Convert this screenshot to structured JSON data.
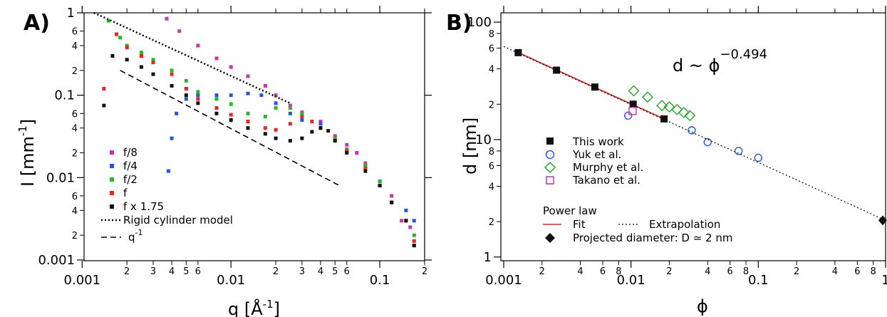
{
  "chart_data": [
    {
      "panel_label": "A)",
      "type": "scatter",
      "xscale": "log",
      "yscale": "log",
      "xlim": [
        0.001,
        0.2
      ],
      "ylim": [
        0.001,
        1
      ],
      "xlabel": "q [Å",
      "xlabel_sup": "-1",
      "xlabel_end": "]",
      "ylabel": "I [mm",
      "ylabel_sup": "-1",
      "ylabel_end": "]",
      "x_ticks": [
        {
          "v": 0.001,
          "t": "0.001"
        },
        {
          "v": 0.01,
          "t": "0.01"
        },
        {
          "v": 0.1,
          "t": "0.1"
        }
      ],
      "x_minor_ticks": [
        {
          "v": 0.002,
          "t": "2"
        },
        {
          "v": 0.003,
          "t": "3"
        },
        {
          "v": 0.004,
          "t": "4"
        },
        {
          "v": 0.005,
          "t": "5"
        },
        {
          "v": 0.006,
          "t": "6"
        },
        {
          "v": 0.02,
          "t": "2"
        },
        {
          "v": 0.03,
          "t": "3"
        },
        {
          "v": 0.04,
          "t": "4"
        },
        {
          "v": 0.05,
          "t": "5"
        },
        {
          "v": 0.06,
          "t": "6"
        },
        {
          "v": 0.2,
          "t": "2"
        }
      ],
      "y_ticks": [
        {
          "v": 0.001,
          "t": "0.001"
        },
        {
          "v": 0.01,
          "t": "0.01"
        },
        {
          "v": 0.1,
          "t": "0.1"
        },
        {
          "v": 1,
          "t": "1"
        }
      ],
      "y_minor_ticks": [
        {
          "v": 0.002,
          "t": "2"
        },
        {
          "v": 0.004,
          "t": "4"
        },
        {
          "v": 0.006,
          "t": "6"
        },
        {
          "v": 0.02,
          "t": "2"
        },
        {
          "v": 0.04,
          "t": "4"
        },
        {
          "v": 0.06,
          "t": "6"
        },
        {
          "v": 0.2,
          "t": "2"
        },
        {
          "v": 0.4,
          "t": "4"
        },
        {
          "v": 0.6,
          "t": "6"
        }
      ],
      "series": [
        {
          "name": "f/8",
          "color": "#cc33aa",
          "x": [
            0.0037,
            0.0045,
            0.006,
            0.008,
            0.01,
            0.013,
            0.017,
            0.02,
            0.025,
            0.03,
            0.04,
            0.05,
            0.06,
            0.07,
            0.08,
            0.1,
            0.12,
            0.14,
            0.16,
            0.17
          ],
          "y": [
            0.85,
            0.6,
            0.4,
            0.28,
            0.22,
            0.17,
            0.13,
            0.1,
            0.075,
            0.062,
            0.048,
            0.032,
            0.025,
            0.02,
            0.015,
            0.009,
            0.006,
            0.003,
            0.0025,
            0.0015
          ]
        },
        {
          "name": "f/4",
          "color": "#2255ee",
          "x": [
            0.0038,
            0.004,
            0.0043,
            0.005,
            0.006,
            0.008,
            0.01,
            0.013,
            0.016,
            0.02,
            0.025,
            0.03,
            0.04,
            0.05,
            0.06,
            0.08,
            0.1,
            0.12,
            0.15,
            0.17
          ],
          "y": [
            0.012,
            0.03,
            0.06,
            0.09,
            0.1,
            0.1,
            0.1,
            0.105,
            0.1,
            0.08,
            0.06,
            0.05,
            0.045,
            0.03,
            0.022,
            0.014,
            0.009,
            0.005,
            0.004,
            0.003
          ]
        },
        {
          "name": "f/2",
          "color": "#22bb22",
          "x": [
            0.0015,
            0.0018,
            0.002,
            0.0025,
            0.003,
            0.004,
            0.005,
            0.006,
            0.008,
            0.01,
            0.013,
            0.017,
            0.02,
            0.025,
            0.03,
            0.04,
            0.05,
            0.06,
            0.08,
            0.1,
            0.12,
            0.15,
            0.17
          ],
          "y": [
            0.8,
            0.5,
            0.4,
            0.33,
            0.27,
            0.2,
            0.15,
            0.11,
            0.09,
            0.078,
            0.06,
            0.055,
            0.07,
            0.07,
            0.06,
            0.04,
            0.03,
            0.022,
            0.014,
            0.009,
            0.005,
            0.003,
            0.002
          ]
        },
        {
          "name": "f",
          "color": "#ee2222",
          "x": [
            0.0014,
            0.0017,
            0.002,
            0.0025,
            0.003,
            0.004,
            0.005,
            0.006,
            0.008,
            0.01,
            0.013,
            0.017,
            0.02,
            0.025,
            0.03,
            0.035,
            0.04,
            0.05,
            0.06,
            0.08,
            0.1,
            0.12,
            0.15,
            0.17
          ],
          "y": [
            0.12,
            0.55,
            0.38,
            0.3,
            0.25,
            0.18,
            0.12,
            0.09,
            0.07,
            0.058,
            0.048,
            0.04,
            0.038,
            0.045,
            0.055,
            0.048,
            0.04,
            0.028,
            0.021,
            0.013,
            0.008,
            0.005,
            0.003,
            0.0017
          ]
        },
        {
          "name": "f x 1.75",
          "color": "#111111",
          "x": [
            0.0014,
            0.0016,
            0.002,
            0.0025,
            0.003,
            0.004,
            0.005,
            0.006,
            0.008,
            0.01,
            0.013,
            0.017,
            0.02,
            0.025,
            0.03,
            0.035,
            0.04,
            0.045,
            0.05,
            0.06,
            0.08,
            0.1,
            0.12,
            0.15,
            0.17
          ],
          "y": [
            0.075,
            0.3,
            0.27,
            0.22,
            0.18,
            0.13,
            0.1,
            0.08,
            0.06,
            0.05,
            0.04,
            0.034,
            0.03,
            0.028,
            0.03,
            0.036,
            0.04,
            0.037,
            0.028,
            0.02,
            0.012,
            0.008,
            0.005,
            0.003,
            0.0015
          ]
        }
      ],
      "lines": [
        {
          "name": "Rigid cylinder model",
          "style": "dotted",
          "x": [
            0.0012,
            0.025
          ],
          "y": [
            1,
            0.08
          ]
        },
        {
          "name": "q",
          "name_sup": "-1",
          "style": "dashed",
          "x": [
            0.0018,
            0.055
          ],
          "y": [
            0.2,
            0.0078
          ]
        }
      ]
    },
    {
      "panel_label": "B)",
      "type": "scatter",
      "xscale": "log",
      "yscale": "log",
      "xlim": [
        0.001,
        1
      ],
      "ylim": [
        1,
        100
      ],
      "xlabel": "ϕ",
      "ylabel": "d [nm]",
      "annotation": "d ~ ϕ",
      "annotation_sup": "−0.494",
      "x_ticks": [
        {
          "v": 0.001,
          "t": "0.001"
        },
        {
          "v": 0.01,
          "t": "0.01"
        },
        {
          "v": 0.1,
          "t": "0.1"
        },
        {
          "v": 1,
          "t": "1"
        }
      ],
      "x_minor_ticks": [
        {
          "v": 0.002,
          "t": "2"
        },
        {
          "v": 0.004,
          "t": "4"
        },
        {
          "v": 0.006,
          "t": "6"
        },
        {
          "v": 0.008,
          "t": "8"
        },
        {
          "v": 0.02,
          "t": "2"
        },
        {
          "v": 0.04,
          "t": "4"
        },
        {
          "v": 0.06,
          "t": "6"
        },
        {
          "v": 0.08,
          "t": "8"
        },
        {
          "v": 0.2,
          "t": "2"
        },
        {
          "v": 0.4,
          "t": "4"
        },
        {
          "v": 0.6,
          "t": "6"
        },
        {
          "v": 0.8,
          "t": "8"
        }
      ],
      "y_ticks": [
        {
          "v": 1,
          "t": "1"
        },
        {
          "v": 10,
          "t": "10"
        },
        {
          "v": 100,
          "t": "100"
        }
      ],
      "y_minor_ticks": [
        {
          "v": 2,
          "t": "2"
        },
        {
          "v": 4,
          "t": "4"
        },
        {
          "v": 6,
          "t": "6"
        },
        {
          "v": 8,
          "t": "8"
        },
        {
          "v": 20,
          "t": "2"
        },
        {
          "v": 40,
          "t": "4"
        },
        {
          "v": 60,
          "t": "6"
        },
        {
          "v": 80,
          "t": "8"
        }
      ],
      "series": [
        {
          "name": "This work",
          "marker": "square-filled",
          "color": "#111111",
          "x": [
            0.0013,
            0.0026,
            0.0052,
            0.0104,
            0.0182
          ],
          "y": [
            55,
            39,
            28,
            20,
            15
          ]
        },
        {
          "name": "Yuk et al.",
          "marker": "circle-open",
          "color": "#2255ee",
          "x": [
            0.0095,
            0.03,
            0.04,
            0.07,
            0.1
          ],
          "y": [
            16,
            12,
            9.5,
            8,
            7
          ]
        },
        {
          "name": "Murphy et al.",
          "marker": "diamond-open",
          "color": "#22aa22",
          "x": [
            0.0105,
            0.0135,
            0.0175,
            0.02,
            0.023,
            0.026,
            0.029
          ],
          "y": [
            26,
            23,
            19.5,
            19,
            18,
            17,
            16
          ]
        },
        {
          "name": "Takano et al.",
          "marker": "square-open",
          "color": "#cc33aa",
          "x": [
            0.0103
          ],
          "y": [
            17.5
          ]
        }
      ],
      "lines": [
        {
          "name": "Fit",
          "style": "solid",
          "color": "#e8262a",
          "x": [
            0.0013,
            0.0182
          ],
          "y": [
            55,
            15
          ]
        },
        {
          "name": "Extrapolation",
          "style": "dotted",
          "color": "#111111",
          "x": [
            0.001,
            1
          ],
          "y": [
            62,
            2.05
          ]
        }
      ],
      "projected": {
        "name": "Projected diameter: D ≃ 2 nm",
        "x": 1,
        "y": 2.05
      },
      "legend_power_title": "Power law"
    }
  ]
}
